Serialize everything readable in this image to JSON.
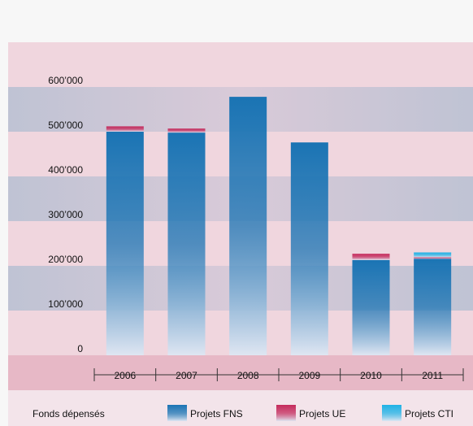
{
  "chart_data": {
    "type": "bar",
    "stacked": true,
    "categories": [
      "2006",
      "2007",
      "2008",
      "2009",
      "2010",
      "2011"
    ],
    "series": [
      {
        "name": "Projets FNS",
        "color": "#1a74b4",
        "values": [
          500000,
          498000,
          578000,
          476000,
          213000,
          216000
        ]
      },
      {
        "name": "Projets UE",
        "color": "#c42a5c",
        "values": [
          12000,
          9000,
          0,
          0,
          14000,
          3000
        ]
      },
      {
        "name": "Projets CTI",
        "color": "#1fb2e6",
        "values": [
          0,
          0,
          0,
          0,
          0,
          11000
        ]
      }
    ],
    "legend_title": "Fonds dépensés",
    "ylim": [
      0,
      600000
    ],
    "yticks": [
      0,
      {
        "value": 100000,
        "label": "100’000"
      },
      {
        "value": 200000,
        "label": "200’000"
      },
      {
        "value": 300000,
        "label": "300’000"
      },
      {
        "value": 400000,
        "label": "400’000"
      },
      {
        "value": 500000,
        "label": "500’000"
      },
      {
        "value": 600000,
        "label": "600’000"
      }
    ]
  }
}
